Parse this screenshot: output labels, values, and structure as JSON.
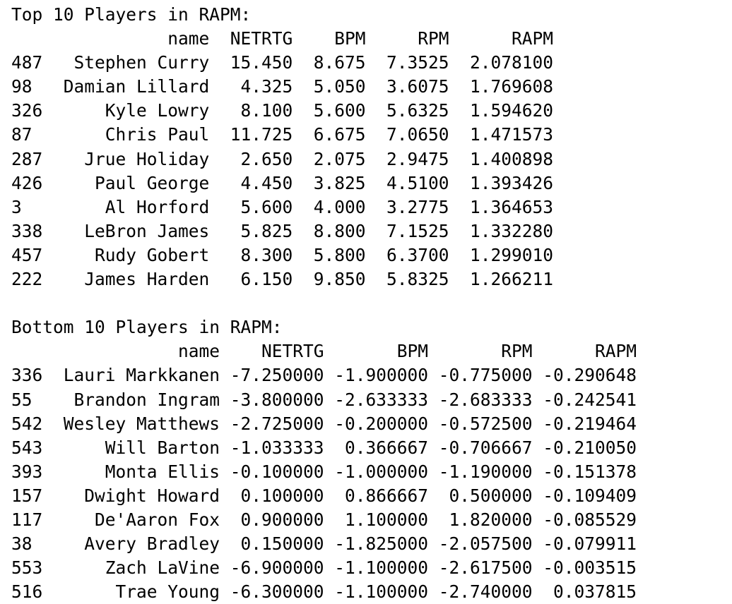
{
  "top": {
    "title": "Top 10 Players in RAPM:",
    "columns": [
      "name",
      "NETRTG",
      "BPM",
      "RPM",
      "RAPM"
    ],
    "rows": [
      {
        "index": "487",
        "name": "Stephen Curry",
        "netrtg": "15.450",
        "bpm": "8.675",
        "rpm": "7.3525",
        "rapm": "2.078100"
      },
      {
        "index": "98",
        "name": "Damian Lillard",
        "netrtg": "4.325",
        "bpm": "5.050",
        "rpm": "3.6075",
        "rapm": "1.769608"
      },
      {
        "index": "326",
        "name": "Kyle Lowry",
        "netrtg": "8.100",
        "bpm": "5.600",
        "rpm": "5.6325",
        "rapm": "1.594620"
      },
      {
        "index": "87",
        "name": "Chris Paul",
        "netrtg": "11.725",
        "bpm": "6.675",
        "rpm": "7.0650",
        "rapm": "1.471573"
      },
      {
        "index": "287",
        "name": "Jrue Holiday",
        "netrtg": "2.650",
        "bpm": "2.075",
        "rpm": "2.9475",
        "rapm": "1.400898"
      },
      {
        "index": "426",
        "name": "Paul George",
        "netrtg": "4.450",
        "bpm": "3.825",
        "rpm": "4.5100",
        "rapm": "1.393426"
      },
      {
        "index": "3",
        "name": "Al Horford",
        "netrtg": "5.600",
        "bpm": "4.000",
        "rpm": "3.2775",
        "rapm": "1.364653"
      },
      {
        "index": "338",
        "name": "LeBron James",
        "netrtg": "5.825",
        "bpm": "8.800",
        "rpm": "7.1525",
        "rapm": "1.332280"
      },
      {
        "index": "457",
        "name": "Rudy Gobert",
        "netrtg": "8.300",
        "bpm": "5.800",
        "rpm": "6.3700",
        "rapm": "1.299010"
      },
      {
        "index": "222",
        "name": "James Harden",
        "netrtg": "6.150",
        "bpm": "9.850",
        "rpm": "5.8325",
        "rapm": "1.266211"
      }
    ]
  },
  "bottom": {
    "title": "Bottom 10 Players in RAPM:",
    "columns": [
      "name",
      "NETRTG",
      "BPM",
      "RPM",
      "RAPM"
    ],
    "rows": [
      {
        "index": "336",
        "name": "Lauri Markkanen",
        "netrtg": "-7.250000",
        "bpm": "-1.900000",
        "rpm": "-0.775000",
        "rapm": "-0.290648"
      },
      {
        "index": "55",
        "name": "Brandon Ingram",
        "netrtg": "-3.800000",
        "bpm": "-2.633333",
        "rpm": "-2.683333",
        "rapm": "-0.242541"
      },
      {
        "index": "542",
        "name": "Wesley Matthews",
        "netrtg": "-2.725000",
        "bpm": "-0.200000",
        "rpm": "-0.572500",
        "rapm": "-0.219464"
      },
      {
        "index": "543",
        "name": "Will Barton",
        "netrtg": "-1.033333",
        "bpm": "0.366667",
        "rpm": "-0.706667",
        "rapm": "-0.210050"
      },
      {
        "index": "393",
        "name": "Monta Ellis",
        "netrtg": "-0.100000",
        "bpm": "-1.000000",
        "rpm": "-1.190000",
        "rapm": "-0.151378"
      },
      {
        "index": "157",
        "name": "Dwight Howard",
        "netrtg": "0.100000",
        "bpm": "0.866667",
        "rpm": "0.500000",
        "rapm": "-0.109409"
      },
      {
        "index": "117",
        "name": "De'Aaron Fox",
        "netrtg": "0.900000",
        "bpm": "1.100000",
        "rpm": "1.820000",
        "rapm": "-0.085529"
      },
      {
        "index": "38",
        "name": "Avery Bradley",
        "netrtg": "0.150000",
        "bpm": "-1.825000",
        "rpm": "-2.057500",
        "rapm": "-0.079911"
      },
      {
        "index": "553",
        "name": "Zach LaVine",
        "netrtg": "-6.900000",
        "bpm": "-1.100000",
        "rpm": "-2.617500",
        "rapm": "-0.003515"
      },
      {
        "index": "516",
        "name": "Trae Young",
        "netrtg": "-6.300000",
        "bpm": "-1.100000",
        "rpm": "-2.740000",
        "rapm": "0.037815"
      }
    ]
  }
}
